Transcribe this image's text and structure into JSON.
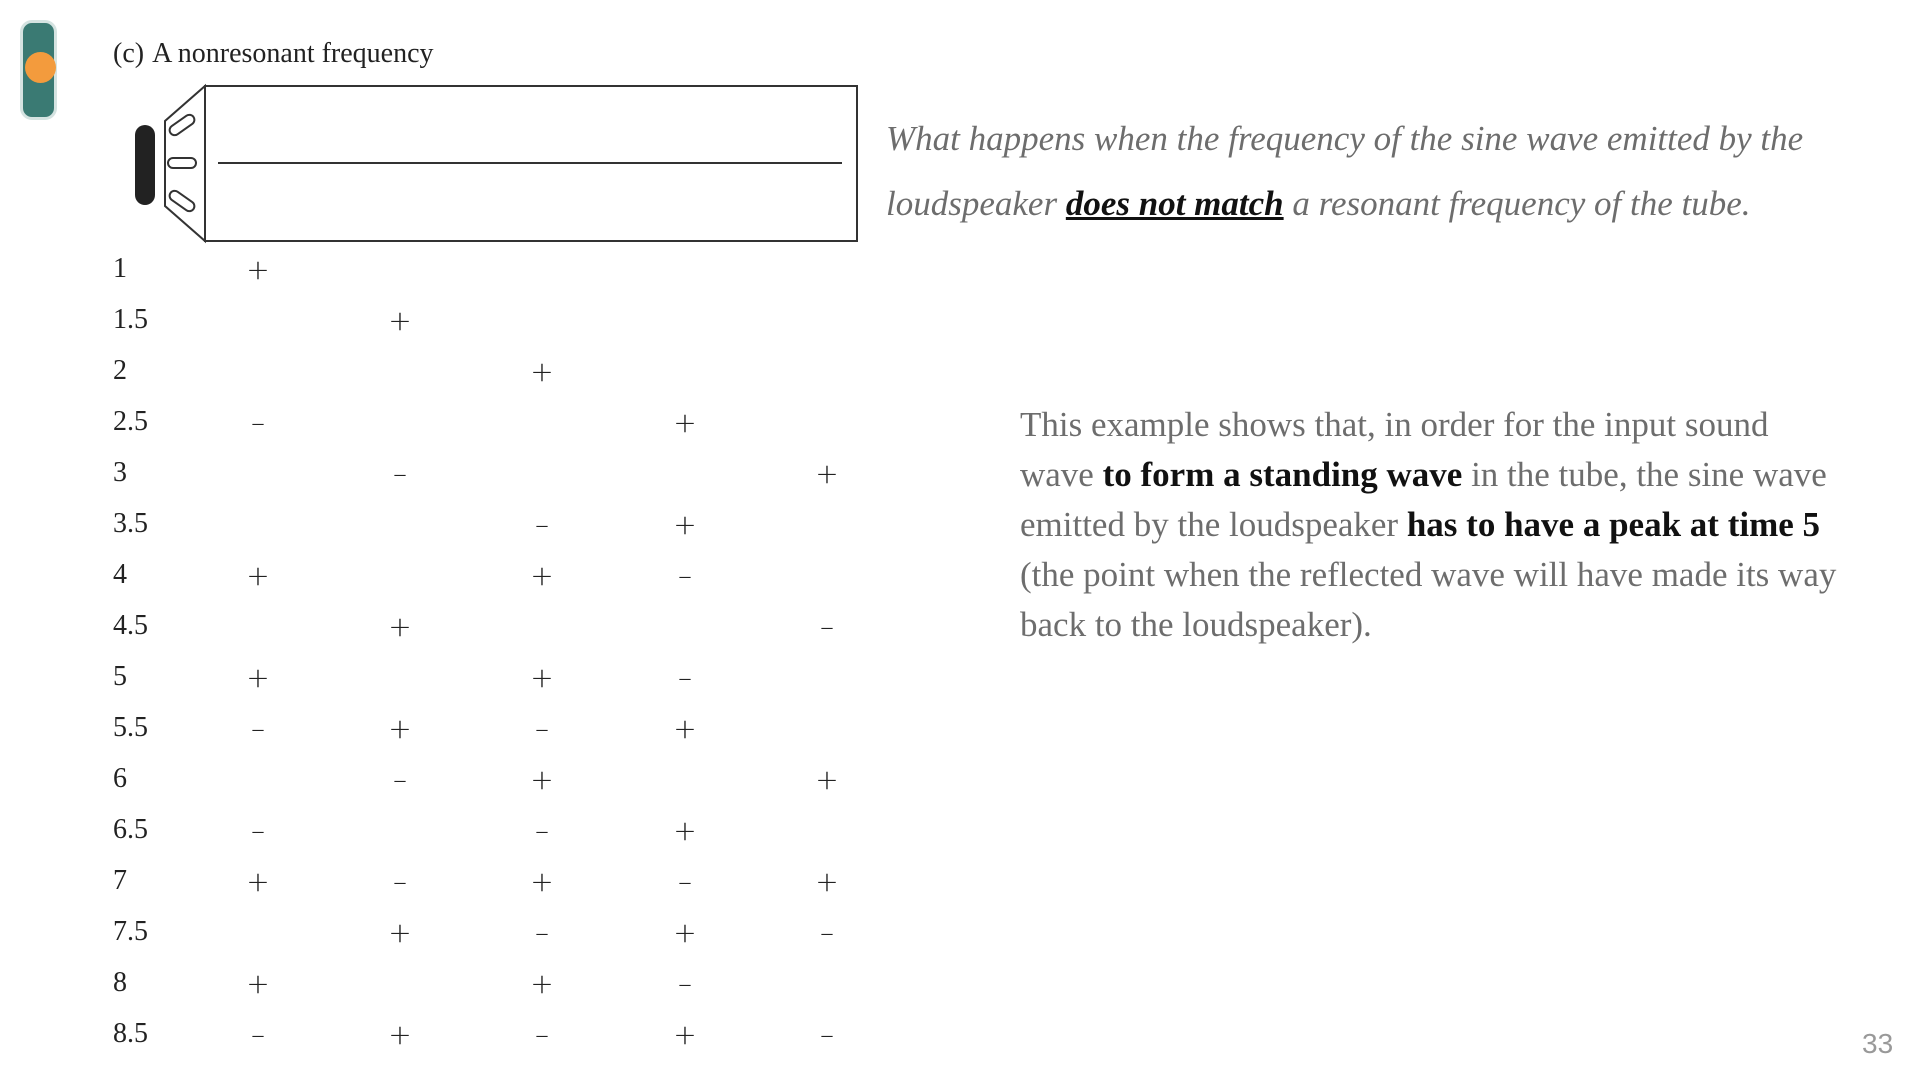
{
  "figure": {
    "tag": "(c)",
    "title": "A nonresonant frequency"
  },
  "rows": [
    {
      "label": "1",
      "signs": [
        "+",
        "",
        "",
        "",
        ""
      ]
    },
    {
      "label": "1.5",
      "signs": [
        "",
        "+",
        "",
        "",
        ""
      ]
    },
    {
      "label": "2",
      "signs": [
        "",
        "",
        "+",
        "",
        ""
      ]
    },
    {
      "label": "2.5",
      "signs": [
        "–",
        "",
        "",
        "+",
        ""
      ]
    },
    {
      "label": "3",
      "signs": [
        "",
        "–",
        "",
        "",
        "+"
      ]
    },
    {
      "label": "3.5",
      "signs": [
        "",
        "",
        "–",
        "+",
        ""
      ]
    },
    {
      "label": "4",
      "signs": [
        "+",
        "",
        "+",
        "–",
        ""
      ]
    },
    {
      "label": "4.5",
      "signs": [
        "",
        "+",
        "",
        "",
        "–"
      ]
    },
    {
      "label": "5",
      "signs": [
        "+",
        "",
        "+",
        "–",
        ""
      ]
    },
    {
      "label": "5.5",
      "signs": [
        "–",
        "+",
        "–",
        "+",
        ""
      ]
    },
    {
      "label": "6",
      "signs": [
        "",
        "–",
        "+",
        "",
        "+"
      ]
    },
    {
      "label": "6.5",
      "signs": [
        "–",
        "",
        "–",
        "+",
        ""
      ]
    },
    {
      "label": "7",
      "signs": [
        "+",
        "–",
        "+",
        "–",
        "+"
      ]
    },
    {
      "label": "7.5",
      "signs": [
        "",
        "+",
        "–",
        "+",
        "–"
      ]
    },
    {
      "label": "8",
      "signs": [
        "+",
        "",
        "+",
        "–",
        ""
      ]
    },
    {
      "label": "8.5",
      "signs": [
        "–",
        "+",
        "–",
        "+",
        "–"
      ]
    }
  ],
  "question": {
    "part1": "What happens when the frequency of the sine wave emitted by the loudspeaker ",
    "emphasis": "does not match",
    "part2": " a resonant frequency of the tube."
  },
  "explanation": {
    "t1": "This example shows that, in order for the input sound wave ",
    "b1": "to form a standing wave",
    "t2": " in the tube, the sine wave emitted by the loudspeaker ",
    "b2": "has to have a peak at time 5",
    "t3": " (the point when the reflected wave will have made its way back to the loudspeaker)."
  },
  "page_number": "33",
  "colors": {
    "slider_track": "#3a7a73",
    "slider_knob": "#f39b3d",
    "question_text": "#6d6d6d"
  }
}
